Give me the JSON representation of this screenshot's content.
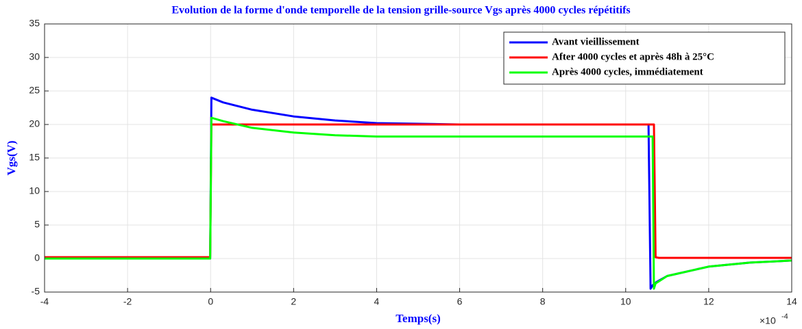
{
  "chart_data": {
    "type": "line",
    "title": "Evolution de la forme d'onde temporelle de la tension grille-source Vgs après 4000 cycles répétitifs",
    "xlabel": "Temps(s)",
    "ylabel": "Vgs(V)",
    "x_multiplier": "×10",
    "x_multiplier_exponent": "-4",
    "x": [
      -4,
      -0.01,
      0.02,
      0.3,
      1,
      2,
      3,
      4,
      6,
      8,
      10.55,
      10.6,
      10.65,
      10.68,
      10.72,
      10.8,
      11,
      12,
      13,
      14
    ],
    "series": [
      {
        "name": "Avant vieillissement",
        "color": "#0000ff",
        "values": [
          0,
          0,
          24,
          23.3,
          22.2,
          21.2,
          20.6,
          20.2,
          20,
          20,
          20,
          -4.5,
          -4,
          -3.8,
          -3.6,
          -3.3,
          -2.6,
          -1.2,
          -0.6,
          -0.3
        ]
      },
      {
        "name": "After 4000 cycles et après 48h à 25°C",
        "color": "#ff0000",
        "values": [
          0.2,
          0.2,
          20,
          20,
          20,
          20,
          20,
          20,
          20,
          20,
          20,
          20,
          20,
          20,
          0.2,
          0.1,
          0.1,
          0.1,
          0.1,
          0.1
        ]
      },
      {
        "name": "Après 4000 cycles, immédiatement",
        "color": "#00ff00",
        "values": [
          0,
          0,
          21,
          20.5,
          19.5,
          18.8,
          18.4,
          18.2,
          18.2,
          18.2,
          18.2,
          18.2,
          18.2,
          -4.5,
          -3.7,
          -3.4,
          -2.6,
          -1.2,
          -0.6,
          -0.3
        ]
      }
    ],
    "xlim": [
      -4,
      14
    ],
    "xticks": [
      -4,
      -2,
      0,
      2,
      4,
      6,
      8,
      10,
      12,
      14
    ],
    "ylim": [
      -5,
      35
    ],
    "yticks": [
      -5,
      0,
      5,
      10,
      15,
      20,
      25,
      30,
      35
    ],
    "grid": true,
    "legend": "upper right"
  }
}
